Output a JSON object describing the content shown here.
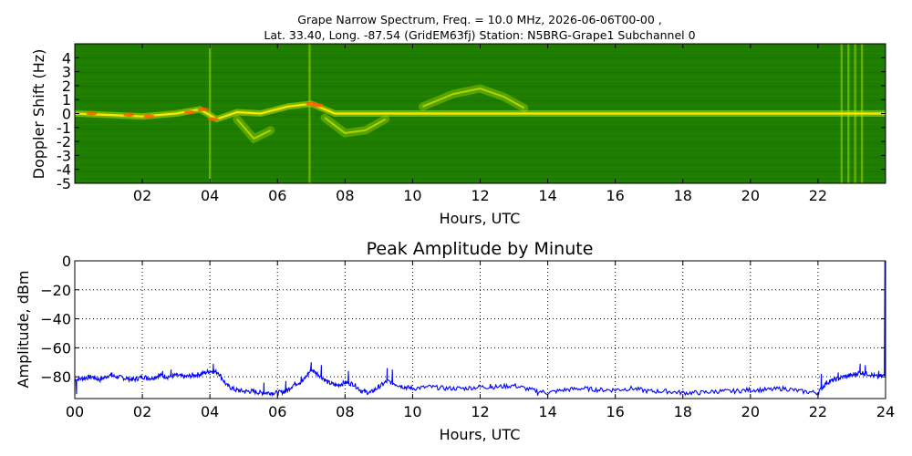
{
  "figure": {
    "title_line1": "Grape Narrow Spectrum, Freq. = 10.0 MHz, 2026-06-06T00-00 ,",
    "title_line2": "Lat.  33.40, Long. -87.54 (GridEM63fj) Station: N5BRG-Grape1 Subchannel 0"
  },
  "chart_data": [
    {
      "type": "heatmap",
      "title": "",
      "xlabel": "Hours, UTC",
      "ylabel": "Doppler Shift (Hz)",
      "xlim": [
        0,
        24
      ],
      "ylim": [
        -5,
        5
      ],
      "x_ticks": [
        2,
        4,
        6,
        8,
        10,
        12,
        14,
        16,
        18,
        20,
        22
      ],
      "x_tick_labels": [
        "02",
        "04",
        "06",
        "08",
        "10",
        "12",
        "14",
        "16",
        "18",
        "20",
        "22"
      ],
      "y_ticks": [
        4,
        3,
        2,
        1,
        0,
        -1,
        -2,
        -3,
        -4,
        -5
      ],
      "y_tick_labels": [
        "4",
        "3",
        "2",
        "1",
        "0",
        "-1",
        "-2",
        "-3",
        "-4",
        "-5"
      ],
      "colors": {
        "background": "#1e7d00",
        "carrier": "#ffe600",
        "peak": "#ff5a00"
      },
      "carrier_trace": [
        {
          "h": 0.0,
          "hz": 0.0
        },
        {
          "h": 1.0,
          "hz": -0.1
        },
        {
          "h": 2.0,
          "hz": -0.2
        },
        {
          "h": 3.0,
          "hz": 0.0
        },
        {
          "h": 3.7,
          "hz": 0.3
        },
        {
          "h": 4.2,
          "hz": -0.4
        },
        {
          "h": 4.8,
          "hz": 0.1
        },
        {
          "h": 5.5,
          "hz": 0.0
        },
        {
          "h": 6.3,
          "hz": 0.5
        },
        {
          "h": 7.0,
          "hz": 0.7
        },
        {
          "h": 7.7,
          "hz": 0.0
        },
        {
          "h": 9.0,
          "hz": 0.0
        },
        {
          "h": 24.0,
          "hz": 0.0
        }
      ],
      "secondary_traces": [
        {
          "name": "",
          "points": [
            {
              "h": 10.3,
              "hz": 0.5
            },
            {
              "h": 11.2,
              "hz": 1.4
            },
            {
              "h": 12.0,
              "hz": 1.8
            },
            {
              "h": 12.7,
              "hz": 1.2
            },
            {
              "h": 13.3,
              "hz": 0.4
            }
          ]
        },
        {
          "name": "",
          "points": [
            {
              "h": 7.4,
              "hz": -0.3
            },
            {
              "h": 8.0,
              "hz": -1.4
            },
            {
              "h": 8.6,
              "hz": -1.2
            },
            {
              "h": 9.2,
              "hz": -0.4
            }
          ]
        },
        {
          "name": "",
          "points": [
            {
              "h": 4.8,
              "hz": -0.4
            },
            {
              "h": 5.3,
              "hz": -1.8
            },
            {
              "h": 5.8,
              "hz": -1.2
            }
          ]
        }
      ],
      "broadband_interference_hours": [
        4.0,
        6.95,
        22.7,
        22.9,
        23.1,
        23.3
      ]
    },
    {
      "type": "line",
      "title": "Peak Amplitude by Minute",
      "xlabel": "Hours, UTC",
      "ylabel": "Amplitude, dBm",
      "xlim": [
        0,
        24
      ],
      "ylim": [
        -95,
        0
      ],
      "grid": true,
      "x_ticks": [
        0,
        2,
        4,
        6,
        8,
        10,
        12,
        14,
        16,
        18,
        20,
        22,
        24
      ],
      "x_tick_labels": [
        "00",
        "02",
        "04",
        "06",
        "08",
        "10",
        "12",
        "14",
        "16",
        "18",
        "20",
        "22",
        "24"
      ],
      "y_ticks": [
        0,
        -20,
        -40,
        -60,
        -80
      ],
      "y_tick_labels": [
        "0",
        "−20",
        "−40",
        "−60",
        "−80"
      ],
      "series": [
        {
          "name": "",
          "color": "#0000ff",
          "x": [
            0.0,
            0.25,
            0.5,
            0.75,
            1.0,
            1.25,
            1.5,
            1.75,
            2.0,
            2.25,
            2.5,
            2.75,
            3.0,
            3.25,
            3.5,
            3.75,
            4.0,
            4.25,
            4.5,
            4.75,
            5.0,
            5.25,
            5.5,
            5.75,
            6.0,
            6.25,
            6.5,
            6.75,
            7.0,
            7.25,
            7.5,
            7.75,
            8.0,
            8.25,
            8.5,
            8.75,
            9.0,
            9.25,
            9.5,
            9.75,
            10.0,
            10.5,
            11.0,
            11.5,
            12.0,
            12.5,
            13.0,
            13.5,
            14.0,
            14.5,
            15.0,
            15.5,
            16.0,
            16.5,
            17.0,
            17.5,
            18.0,
            18.5,
            19.0,
            19.5,
            20.0,
            20.5,
            21.0,
            21.5,
            22.0,
            22.25,
            22.5,
            22.75,
            23.0,
            23.25,
            23.5,
            23.75,
            24.0
          ],
          "values": [
            -82,
            -81,
            -80,
            -82,
            -79,
            -80,
            -81,
            -82,
            -80,
            -81,
            -79,
            -80,
            -79,
            -80,
            -79,
            -78,
            -76,
            -77,
            -86,
            -89,
            -90,
            -90,
            -91,
            -91,
            -91,
            -90,
            -85,
            -83,
            -75,
            -79,
            -84,
            -86,
            -84,
            -85,
            -90,
            -91,
            -87,
            -83,
            -85,
            -87,
            -88,
            -87,
            -88,
            -88,
            -87,
            -87,
            -86,
            -89,
            -91,
            -89,
            -88,
            -89,
            -89,
            -88,
            -90,
            -90,
            -91,
            -91,
            -90,
            -90,
            -89,
            -89,
            -88,
            -90,
            -91,
            -84,
            -82,
            -80,
            -79,
            -77,
            -78,
            -80,
            -79
          ]
        }
      ],
      "spikes": [
        {
          "x": 0.05,
          "y": -92
        },
        {
          "x": 1.1,
          "y": -77
        },
        {
          "x": 2.6,
          "y": -76
        },
        {
          "x": 2.85,
          "y": -75
        },
        {
          "x": 4.1,
          "y": -71
        },
        {
          "x": 5.6,
          "y": -84
        },
        {
          "x": 6.25,
          "y": -83
        },
        {
          "x": 6.7,
          "y": -80
        },
        {
          "x": 7.0,
          "y": -70
        },
        {
          "x": 7.3,
          "y": -72
        },
        {
          "x": 8.1,
          "y": -76
        },
        {
          "x": 9.25,
          "y": -74
        },
        {
          "x": 9.4,
          "y": -75
        },
        {
          "x": 12.3,
          "y": -85
        },
        {
          "x": 13.7,
          "y": -93
        },
        {
          "x": 22.1,
          "y": -78
        },
        {
          "x": 22.6,
          "y": -77
        },
        {
          "x": 23.25,
          "y": -71
        },
        {
          "x": 23.4,
          "y": -72
        },
        {
          "x": 23.8,
          "y": -76
        },
        {
          "x": 23.98,
          "y": 0
        }
      ]
    }
  ]
}
